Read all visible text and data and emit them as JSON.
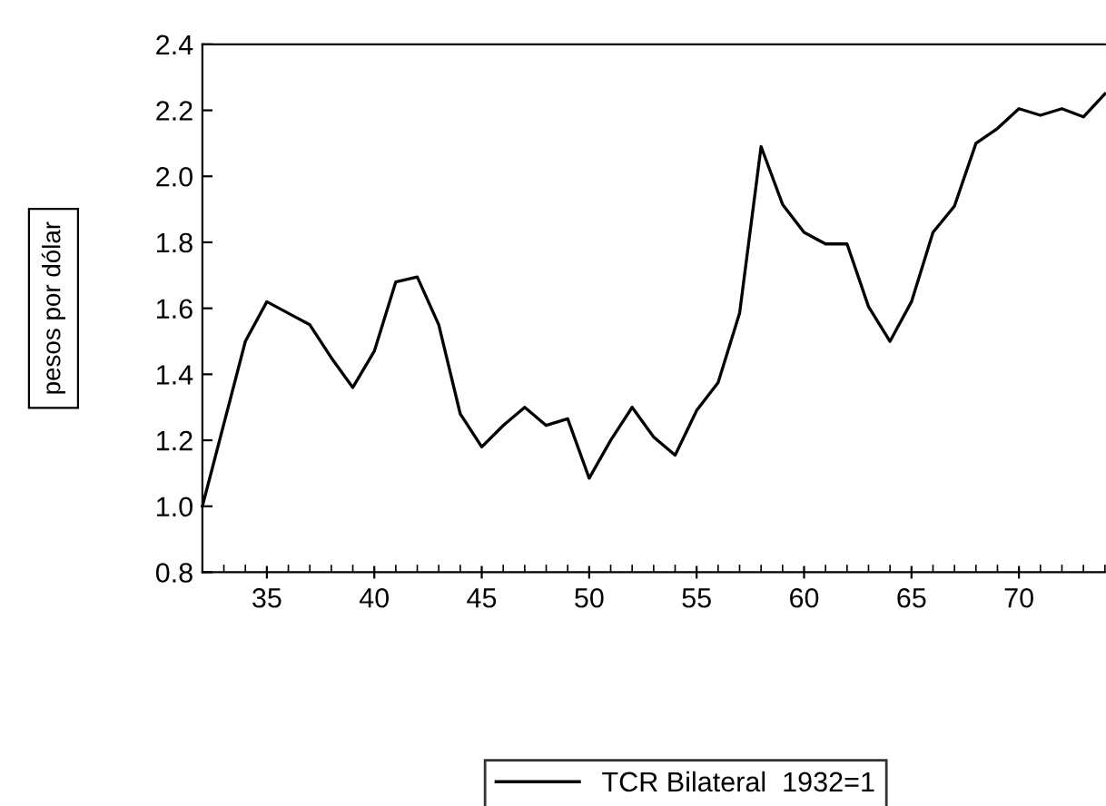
{
  "chart_data": {
    "type": "line",
    "ylabel": "pesos por dólar",
    "legend": "bottom",
    "x": [
      32,
      33,
      34,
      35,
      36,
      37,
      38,
      39,
      40,
      41,
      42,
      43,
      44,
      45,
      46,
      47,
      48,
      49,
      50,
      51,
      52,
      53,
      54,
      55,
      56,
      57,
      58,
      59,
      60,
      61,
      62,
      63,
      64,
      65,
      66,
      67,
      68,
      69,
      70,
      71,
      72,
      73,
      74
    ],
    "series": [
      {
        "name": "TCR Bilateral  1932=1",
        "color": "#000000",
        "values": [
          1.0,
          1.25,
          1.5,
          1.62,
          1.585,
          1.55,
          1.45,
          1.36,
          1.47,
          1.68,
          1.695,
          1.55,
          1.28,
          1.18,
          1.245,
          1.3,
          1.245,
          1.265,
          1.085,
          1.2,
          1.3,
          1.21,
          1.155,
          1.29,
          1.375,
          1.585,
          2.09,
          1.915,
          1.83,
          1.795,
          1.795,
          1.605,
          1.5,
          1.62,
          1.83,
          1.91,
          2.1,
          2.145,
          2.205,
          2.185,
          2.205,
          2.18,
          2.25
        ]
      }
    ],
    "xlim": [
      32,
      74
    ],
    "xticks": [
      35,
      40,
      45,
      50,
      55,
      60,
      65,
      70
    ],
    "ylim": [
      0.8,
      2.4
    ],
    "yticks": [
      {
        "value": 0.8,
        "label": "0.8"
      },
      {
        "value": 1.0,
        "label": "1.0"
      },
      {
        "value": 1.2,
        "label": "1.2"
      },
      {
        "value": 1.4,
        "label": "1.4"
      },
      {
        "value": 1.6,
        "label": "1.6"
      },
      {
        "value": 1.8,
        "label": "1.8"
      },
      {
        "value": 2.0,
        "label": "2.0"
      },
      {
        "value": 2.2,
        "label": "2.2"
      },
      {
        "value": 2.4,
        "label": "2.4"
      }
    ],
    "grid": false,
    "line_style": "solid",
    "marker": "none"
  }
}
